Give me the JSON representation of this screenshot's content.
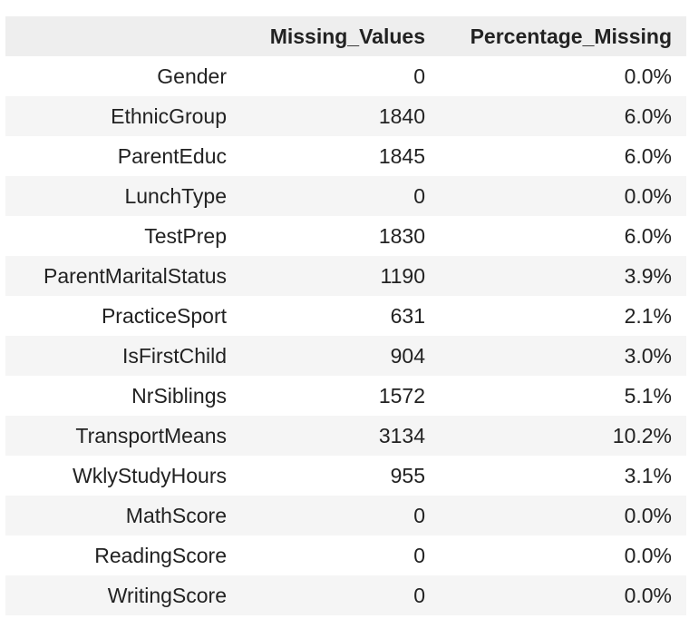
{
  "table": {
    "columns": [
      "Missing_Values",
      "Percentage_Missing"
    ],
    "rows": [
      {
        "index": "Gender",
        "missing": "0",
        "pct": "0.0%"
      },
      {
        "index": "EthnicGroup",
        "missing": "1840",
        "pct": "6.0%"
      },
      {
        "index": "ParentEduc",
        "missing": "1845",
        "pct": "6.0%"
      },
      {
        "index": "LunchType",
        "missing": "0",
        "pct": "0.0%"
      },
      {
        "index": "TestPrep",
        "missing": "1830",
        "pct": "6.0%"
      },
      {
        "index": "ParentMaritalStatus",
        "missing": "1190",
        "pct": "3.9%"
      },
      {
        "index": "PracticeSport",
        "missing": "631",
        "pct": "2.1%"
      },
      {
        "index": "IsFirstChild",
        "missing": "904",
        "pct": "3.0%"
      },
      {
        "index": "NrSiblings",
        "missing": "1572",
        "pct": "5.1%"
      },
      {
        "index": "TransportMeans",
        "missing": "3134",
        "pct": "10.2%"
      },
      {
        "index": "WklyStudyHours",
        "missing": "955",
        "pct": "3.1%"
      },
      {
        "index": "MathScore",
        "missing": "0",
        "pct": "0.0%"
      },
      {
        "index": "ReadingScore",
        "missing": "0",
        "pct": "0.0%"
      },
      {
        "index": "WritingScore",
        "missing": "0",
        "pct": "0.0%"
      }
    ]
  }
}
